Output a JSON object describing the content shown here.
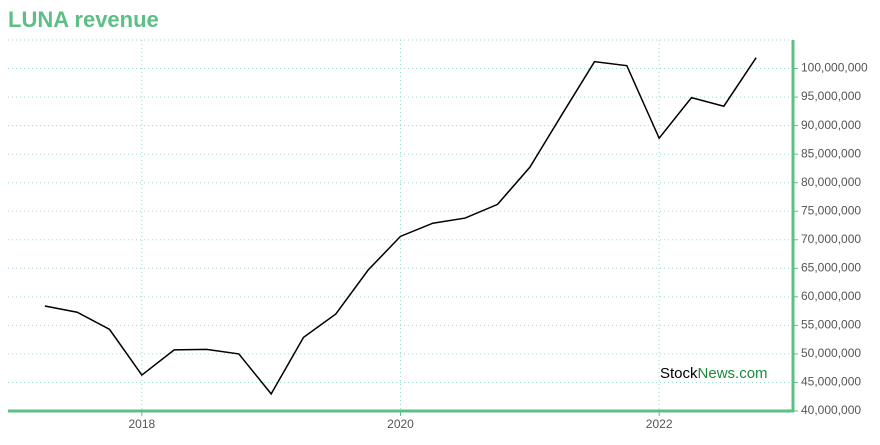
{
  "chart_data": {
    "type": "line",
    "title": "LUNA revenue",
    "x": [
      2017.25,
      2017.5,
      2017.75,
      2018.0,
      2018.25,
      2018.5,
      2018.75,
      2019.0,
      2019.25,
      2019.5,
      2019.75,
      2020.0,
      2020.25,
      2020.5,
      2020.75,
      2021.0,
      2021.25,
      2021.5,
      2021.75,
      2022.0,
      2022.25,
      2022.5,
      2022.75
    ],
    "series": [
      {
        "name": "LUNA",
        "color": "#000000",
        "values": [
          58400000,
          57300000,
          54300000,
          46300000,
          50700000,
          50800000,
          50000000,
          43000000,
          52900000,
          57000000,
          64700000,
          70600000,
          72900000,
          73800000,
          76200000,
          82700000,
          92000000,
          101200000,
          100500000,
          87800000,
          94900000,
          93400000,
          101900000
        ]
      }
    ],
    "xlim": [
      2016.965,
      2023.035
    ],
    "xticks": [
      2018,
      2020,
      2022
    ],
    "ylim": [
      40000000,
      105000000
    ],
    "yticks": [
      {
        "value": 40000000,
        "label": "40,000,000"
      },
      {
        "value": 45000000,
        "label": "45,000,000"
      },
      {
        "value": 50000000,
        "label": "50,000,000"
      },
      {
        "value": 55000000,
        "label": "55,000,000"
      },
      {
        "value": 60000000,
        "label": "60,000,000"
      },
      {
        "value": 65000000,
        "label": "65,000,000"
      },
      {
        "value": 70000000,
        "label": "70,000,000"
      },
      {
        "value": 75000000,
        "label": "75,000,000"
      },
      {
        "value": 80000000,
        "label": "80,000,000"
      },
      {
        "value": 85000000,
        "label": "85,000,000"
      },
      {
        "value": 90000000,
        "label": "90,000,000"
      },
      {
        "value": 95000000,
        "label": "95,000,000"
      },
      {
        "value": 100000000,
        "label": "100,000,000"
      }
    ],
    "grid": true,
    "axis_color": "#5cbf85",
    "watermark": [
      "Stock",
      "News.com"
    ]
  }
}
